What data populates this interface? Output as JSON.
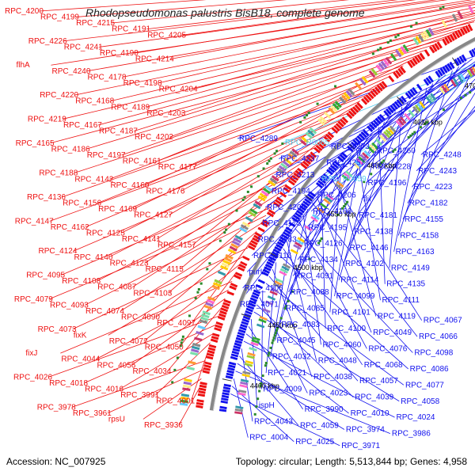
{
  "title": "Rhodopseudomonas palustris BisB18, complete genome",
  "footer": {
    "accession": "Accession: NC_007925",
    "summary": "Topology: circular; Length: 5,513,844 bp; Genes: 4,958"
  },
  "colors": {
    "forward": "#ee1111",
    "reverse": "#1111ee",
    "rna": "#55ccee",
    "backbone": "#888888"
  },
  "scale_marks": [
    "4400 kbp",
    "4450 kbp",
    "4500 kbp",
    "4550 kbp",
    "4600 kbp",
    "4650 kbp",
    "4700 kbp",
    "4750 kbp",
    "4800 kbp",
    "4850 kbp"
  ],
  "forward_labels": [
    "RPC_4200",
    "RPC_4199",
    "RPC_4215",
    "RPC_4191",
    "RPC_4205",
    "RPC_4226",
    "RPC_4241",
    "RPC_4190",
    "RPC_4214",
    "flhA",
    "RPC_4240",
    "RPC_4178",
    "RPC_4198",
    "RPC_4204",
    "RPC_4220",
    "RPC_4168",
    "RPC_4189",
    "RPC_4203",
    "RPC_4219",
    "RPC_4167",
    "RPC_4187",
    "RPC_4202",
    "RPC_4165",
    "RPC_4186",
    "RPC_4197",
    "RPC_4161",
    "RPC_4177",
    "RPC_4188",
    "RPC_4142",
    "RPC_4160",
    "RPC_4176",
    "RPC_4136",
    "RPC_4156",
    "RPC_4169",
    "RPC_4127",
    "RPC_4147",
    "RPC_4162",
    "RPC_4125",
    "RPC_4141",
    "RPC_4157",
    "RPC_4124",
    "RPC_4140",
    "RPC_4123",
    "RPC_4115",
    "RPC_4095",
    "RPC_4108",
    "RPC_4087",
    "RPC_4103",
    "RPC_4079",
    "RPC_4093",
    "RPC_4074",
    "RPC_4090",
    "RPC_4097",
    "RPC_4073",
    "fixK",
    "RPC_4072",
    "RPC_4050",
    "fixJ",
    "RPC_4044",
    "RPC_4056",
    "RPC_4034",
    "RPC_4026",
    "RPC_4018",
    "RPC_4016",
    "RPC_3991",
    "RPC_4001",
    "RPC_3978",
    "RPC_3961",
    "rpsU",
    "RPC_3936"
  ],
  "reverse_labels": [
    "RPC_4289",
    "RPC_R0065",
    "RPC_4273",
    "RPC_4260",
    "RPC_4248",
    "RPC_4237",
    "RPC_4257",
    "RPC_4228",
    "RPC_4243",
    "RPC_4213",
    "RPC_R0059",
    "RPC_4196",
    "RPC_4223",
    "RPC_4194",
    "RPC_4206",
    "fliI",
    "RPC_4182",
    "RPC_4209",
    "RPC_4166",
    "RPC_4181",
    "RPC_4155",
    "RPC_4173",
    "RPC_4195",
    "RPC_4138",
    "RPC_4158",
    "RPC_4183",
    "RPC_4126",
    "RPC_4146",
    "RPC_4163",
    "RPC_4116",
    "RPC_4134",
    "RPC_4102",
    "RPC_4149",
    "purU",
    "RPC_4091",
    "RPC_4114",
    "RPC_4135",
    "RPC_4106",
    "RPC_4088",
    "RPC_4099",
    "RPC_4111",
    "RPC_4071",
    "RPC_4085",
    "RPC_4101",
    "RPC_4119",
    "RPC_4067",
    "RPC_4083",
    "RPC_4100",
    "RPC_4049",
    "RPC_4066",
    "RPC_4045",
    "RPC_4060",
    "RPC_4076",
    "RPC_4098",
    "RPC_4032",
    "RPC_4048",
    "RPC_4068",
    "RPC_4086",
    "RPC_4021",
    "RPC_4038",
    "RPC_4057",
    "RPC_4077",
    "RPC_4009",
    "RPC_4023",
    "RPC_4039",
    "RPC_4058",
    "ispH",
    "RPC_3990",
    "RPC_4010",
    "RPC_4024",
    "RPC_4043",
    "RPC_4059",
    "RPC_3974",
    "RPC_3986",
    "RPC_4004",
    "RPC_4025",
    "RPC_3971"
  ],
  "rna_labels": [
    "RPC_R0065",
    "RPC_R0059"
  ]
}
